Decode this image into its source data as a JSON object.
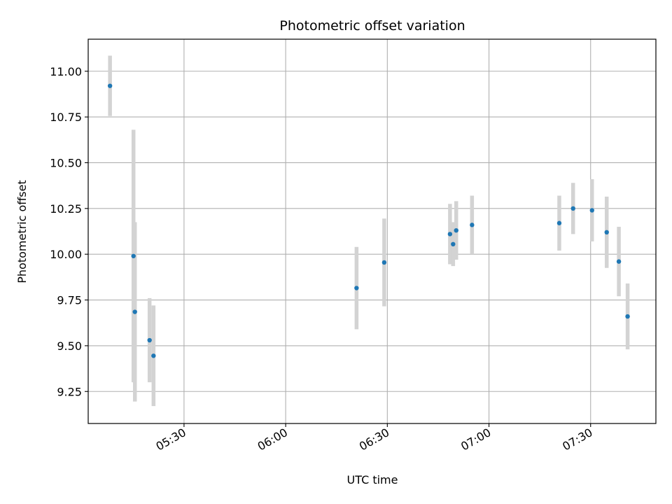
{
  "chart_data": {
    "type": "scatter",
    "title": "Photometric offset variation",
    "xlabel": "UTC time",
    "ylabel": "Photometric offset",
    "x_tick_labels": [
      "05:30",
      "06:00",
      "06:30",
      "07:00",
      "07:30"
    ],
    "x_ticks": [
      "05:30",
      "06:00",
      "06:30",
      "07:00",
      "07:30"
    ],
    "y_tick_labels": [
      "9.25",
      "9.50",
      "9.75",
      "10.00",
      "10.25",
      "10.50",
      "10.75",
      "11.00"
    ],
    "y_ticks": [
      9.25,
      9.5,
      9.75,
      10.0,
      10.25,
      10.5,
      10.75,
      11.0
    ],
    "xlim": [
      "05:01:43",
      "07:49:16"
    ],
    "ylim": [
      9.075,
      11.175
    ],
    "grid": true,
    "errorbar_color": "#d3d3d3",
    "marker_color": "#1f77b4",
    "points": [
      {
        "time": "05:08:09",
        "value": 10.92,
        "error": 0.165
      },
      {
        "time": "05:15:05",
        "value": 9.99,
        "error": 0.69
      },
      {
        "time": "05:15:30",
        "value": 9.685,
        "error": 0.49
      },
      {
        "time": "05:19:50",
        "value": 9.53,
        "error": 0.23
      },
      {
        "time": "05:21:00",
        "value": 9.445,
        "error": 0.275
      },
      {
        "time": "06:20:55",
        "value": 9.815,
        "error": 0.225
      },
      {
        "time": "06:29:05",
        "value": 9.955,
        "error": 0.24
      },
      {
        "time": "06:48:30",
        "value": 10.11,
        "error": 0.165
      },
      {
        "time": "06:49:25",
        "value": 10.055,
        "error": 0.12
      },
      {
        "time": "06:50:20",
        "value": 10.13,
        "error": 0.16
      },
      {
        "time": "06:55:00",
        "value": 10.16,
        "error": 0.16
      },
      {
        "time": "07:20:45",
        "value": 10.17,
        "error": 0.15
      },
      {
        "time": "07:24:50",
        "value": 10.25,
        "error": 0.14
      },
      {
        "time": "07:30:25",
        "value": 10.24,
        "error": 0.17
      },
      {
        "time": "07:34:45",
        "value": 10.12,
        "error": 0.195
      },
      {
        "time": "07:38:20",
        "value": 9.96,
        "error": 0.19
      },
      {
        "time": "07:40:55",
        "value": 9.66,
        "error": 0.18
      }
    ]
  }
}
